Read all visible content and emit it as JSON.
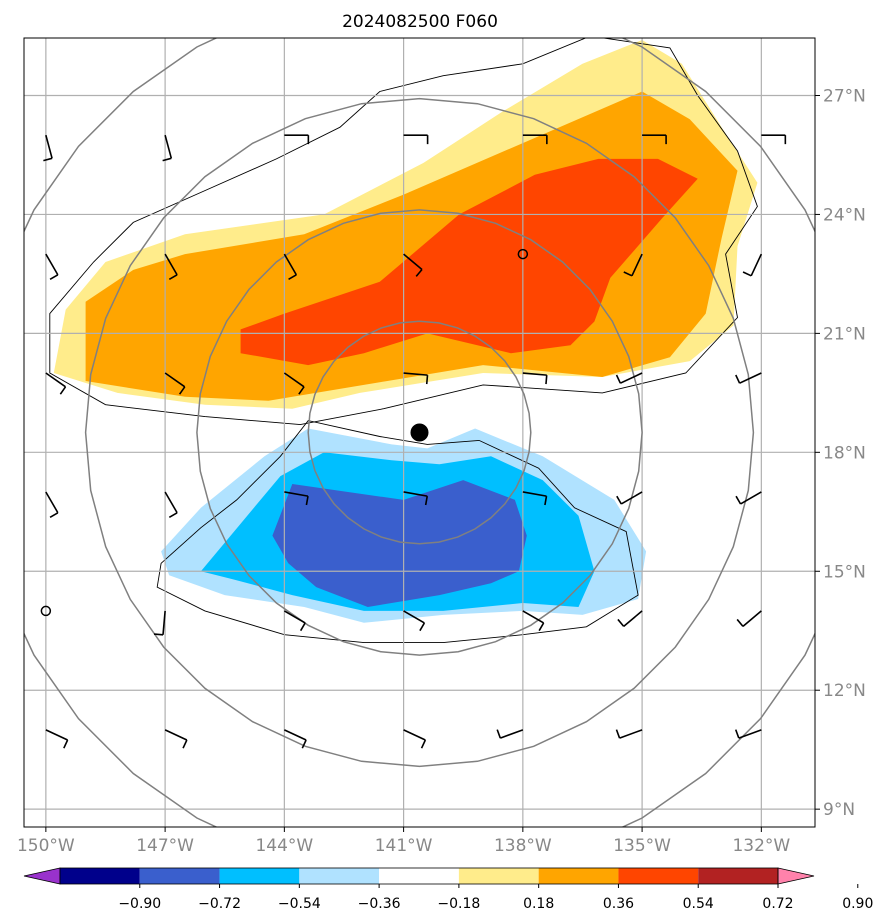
{
  "chart_data": {
    "type": "heatmap",
    "title": "2024082500 F060",
    "map": {
      "lon_range": [
        -150.55,
        -130.65
      ],
      "lat_range": [
        8.55,
        28.45
      ],
      "lon_ticks": [
        -150,
        -147,
        -144,
        -141,
        -138,
        -135,
        -132
      ],
      "lat_ticks": [
        9,
        12,
        15,
        18,
        21,
        24,
        27
      ],
      "lon_tick_labels": [
        "150°W",
        "147°W",
        "144°W",
        "141°W",
        "138°W",
        "135°W",
        "132°W"
      ],
      "lat_tick_labels": [
        "9°N",
        "12°N",
        "15°N",
        "18°N",
        "21°N",
        "24°N",
        "27°N"
      ],
      "grid": true,
      "center_marker": {
        "lon": -140.6,
        "lat": 18.5
      },
      "range_rings_deg": [
        2.8,
        5.6,
        8.4,
        11.2
      ],
      "ring_color": "#808080"
    },
    "colorbar": {
      "levels": [
        "−0.90",
        "−0.72",
        "−0.54",
        "−0.36",
        "−0.18",
        "0.18",
        "0.36",
        "0.54",
        "0.72",
        "0.90"
      ],
      "colors": [
        "#9932CC",
        "#00008B",
        "#3A5FCD",
        "#00BFFF",
        "#B0E2FF",
        "#FFFFFF",
        "#FFEC8B",
        "#FFA500",
        "#FF4500",
        "#B22222",
        "#FF82AB"
      ],
      "extend": "both"
    },
    "contours": [
      {
        "level": 0.18,
        "color": "#FFEC8B",
        "points": [
          [
            -149.5,
            21.6
          ],
          [
            -148.5,
            22.8
          ],
          [
            -146.5,
            23.5
          ],
          [
            -143,
            24
          ],
          [
            -140.5,
            25.3
          ],
          [
            -138.5,
            26.6
          ],
          [
            -136.5,
            27.8
          ],
          [
            -135,
            28.4
          ],
          [
            -134,
            27.8
          ],
          [
            -133,
            26.2
          ],
          [
            -132.1,
            24.8
          ],
          [
            -132.6,
            23.2
          ],
          [
            -132.7,
            21.2
          ],
          [
            -133.8,
            20.3
          ],
          [
            -136,
            19.9
          ],
          [
            -139,
            20
          ],
          [
            -142.1,
            19.5
          ],
          [
            -143.8,
            19.1
          ],
          [
            -146,
            19.2
          ],
          [
            -148.2,
            19.5
          ],
          [
            -149.8,
            20
          ]
        ]
      },
      {
        "level": 0.36,
        "color": "#FFA500",
        "points": [
          [
            -149,
            21.8
          ],
          [
            -147.8,
            22.6
          ],
          [
            -146.5,
            23
          ],
          [
            -143.5,
            23.5
          ],
          [
            -141,
            24.5
          ],
          [
            -138,
            25.8
          ],
          [
            -135,
            27.1
          ],
          [
            -133.8,
            26.4
          ],
          [
            -132.6,
            25.1
          ],
          [
            -133,
            23.4
          ],
          [
            -133.4,
            21.5
          ],
          [
            -134.3,
            20.4
          ],
          [
            -136,
            19.9
          ],
          [
            -139,
            20.2
          ],
          [
            -142,
            19.7
          ],
          [
            -144.4,
            19.3
          ],
          [
            -146.5,
            19.4
          ],
          [
            -149,
            19.8
          ]
        ]
      },
      {
        "level": 0.54,
        "color": "#FF4500",
        "points": [
          [
            -145.1,
            21.1
          ],
          [
            -144,
            21.5
          ],
          [
            -141.6,
            22.3
          ],
          [
            -139.6,
            24
          ],
          [
            -137.7,
            25
          ],
          [
            -136.1,
            25.4
          ],
          [
            -134.6,
            25.4
          ],
          [
            -133.6,
            24.9
          ],
          [
            -134.5,
            23.9
          ],
          [
            -135.8,
            22.4
          ],
          [
            -136.2,
            21.3
          ],
          [
            -136.8,
            20.7
          ],
          [
            -138.3,
            20.5
          ],
          [
            -140.4,
            21
          ],
          [
            -142,
            20.5
          ],
          [
            -143.4,
            20.2
          ],
          [
            -145.1,
            20.5
          ]
        ]
      },
      {
        "level": -0.18,
        "color": "#B0E2FF",
        "points": [
          [
            -147.1,
            15.5
          ],
          [
            -146.1,
            16.6
          ],
          [
            -144.5,
            17.9
          ],
          [
            -143.4,
            18.6
          ],
          [
            -141.3,
            18.2
          ],
          [
            -140.4,
            18.1
          ],
          [
            -139.2,
            18.6
          ],
          [
            -137.5,
            17.9
          ],
          [
            -135.7,
            16.8
          ],
          [
            -134.9,
            15.5
          ],
          [
            -135.1,
            14.3
          ],
          [
            -136.5,
            13.9
          ],
          [
            -138,
            14
          ],
          [
            -140,
            13.9
          ],
          [
            -142,
            13.7
          ],
          [
            -143.5,
            14.1
          ],
          [
            -145.5,
            14.4
          ],
          [
            -146.9,
            14.9
          ]
        ]
      },
      {
        "level": -0.36,
        "color": "#00BFFF",
        "points": [
          [
            -146.1,
            15
          ],
          [
            -145.1,
            16.2
          ],
          [
            -144.1,
            17.4
          ],
          [
            -143,
            18
          ],
          [
            -141.3,
            17.8
          ],
          [
            -140.1,
            17.7
          ],
          [
            -138.8,
            17.9
          ],
          [
            -137.5,
            17.3
          ],
          [
            -136.6,
            16.4
          ],
          [
            -136.2,
            15
          ],
          [
            -136.6,
            14.1
          ],
          [
            -138,
            14.2
          ],
          [
            -140,
            14
          ],
          [
            -142,
            14
          ],
          [
            -143.8,
            14.4
          ],
          [
            -145.3,
            14.8
          ]
        ]
      },
      {
        "level": -0.54,
        "color": "#3A5FCD",
        "points": [
          [
            -144.3,
            15.9
          ],
          [
            -143.8,
            17.2
          ],
          [
            -141,
            16.8
          ],
          [
            -139.5,
            17.3
          ],
          [
            -138.2,
            16.8
          ],
          [
            -137.9,
            15.9
          ],
          [
            -138.1,
            15
          ],
          [
            -138.8,
            14.7
          ],
          [
            -140.1,
            14.4
          ],
          [
            -141.9,
            14.1
          ],
          [
            -143.2,
            14.6
          ],
          [
            -143.9,
            15.2
          ]
        ]
      }
    ],
    "contour_outlines": [
      {
        "level": 0.18,
        "points": [
          [
            -149.9,
            21.5
          ],
          [
            -148.8,
            22.8
          ],
          [
            -147.8,
            23.8
          ],
          [
            -146,
            24.6
          ],
          [
            -144.2,
            25.4
          ],
          [
            -142.6,
            26.2
          ],
          [
            -141.6,
            27.1
          ],
          [
            -140,
            27.5
          ],
          [
            -138,
            27.8
          ],
          [
            -136.3,
            28.5
          ],
          [
            -134.3,
            28.2
          ],
          [
            -133.6,
            27
          ],
          [
            -132.6,
            25.6
          ],
          [
            -132.1,
            24.2
          ],
          [
            -132.9,
            23
          ],
          [
            -132.6,
            21.4
          ],
          [
            -133.9,
            20
          ],
          [
            -136,
            19.5
          ],
          [
            -139,
            19.7
          ],
          [
            -141.5,
            19.1
          ],
          [
            -143.6,
            18.7
          ],
          [
            -146,
            18.9
          ],
          [
            -148.5,
            19.2
          ],
          [
            -149.9,
            20
          ]
        ]
      },
      {
        "level": -0.18,
        "points": [
          [
            -147.1,
            15.2
          ],
          [
            -146.1,
            16.1
          ],
          [
            -145.2,
            16.8
          ],
          [
            -144.1,
            17.9
          ],
          [
            -143.4,
            18.8
          ],
          [
            -141.6,
            18.4
          ],
          [
            -140.4,
            18.2
          ],
          [
            -139.1,
            18.3
          ],
          [
            -137.6,
            17.6
          ],
          [
            -136.7,
            16.6
          ],
          [
            -135.4,
            16
          ],
          [
            -135.1,
            14.4
          ],
          [
            -136.4,
            13.6
          ],
          [
            -138,
            13.4
          ],
          [
            -140,
            13.2
          ],
          [
            -142,
            13.2
          ],
          [
            -144,
            13.4
          ],
          [
            -146,
            14
          ],
          [
            -147.2,
            14.6
          ]
        ]
      }
    ],
    "wind_barbs": [
      {
        "lon": -150,
        "lat": 26
      },
      {
        "lon": -147,
        "lat": 26
      },
      {
        "lon": -144,
        "lat": 26
      },
      {
        "lon": -141,
        "lat": 26
      },
      {
        "lon": -138,
        "lat": 26
      },
      {
        "lon": -135,
        "lat": 26
      },
      {
        "lon": -132,
        "lat": 26
      },
      {
        "lon": -150,
        "lat": 23
      },
      {
        "lon": -147,
        "lat": 23
      },
      {
        "lon": -144,
        "lat": 23
      },
      {
        "lon": -141,
        "lat": 23
      },
      {
        "lon": -138,
        "lat": 23,
        "calm": true
      },
      {
        "lon": -135,
        "lat": 23
      },
      {
        "lon": -132,
        "lat": 23
      },
      {
        "lon": -150,
        "lat": 20
      },
      {
        "lon": -147,
        "lat": 20
      },
      {
        "lon": -144,
        "lat": 20
      },
      {
        "lon": -141,
        "lat": 20
      },
      {
        "lon": -138,
        "lat": 20
      },
      {
        "lon": -135,
        "lat": 20
      },
      {
        "lon": -132,
        "lat": 20
      },
      {
        "lon": -150,
        "lat": 17
      },
      {
        "lon": -147,
        "lat": 17
      },
      {
        "lon": -144,
        "lat": 17
      },
      {
        "lon": -141,
        "lat": 17
      },
      {
        "lon": -138,
        "lat": 17
      },
      {
        "lon": -135,
        "lat": 17
      },
      {
        "lon": -132,
        "lat": 17
      },
      {
        "lon": -150,
        "lat": 14,
        "calm": true
      },
      {
        "lon": -147,
        "lat": 14
      },
      {
        "lon": -144,
        "lat": 14
      },
      {
        "lon": -141,
        "lat": 14
      },
      {
        "lon": -138,
        "lat": 14
      },
      {
        "lon": -135,
        "lat": 14
      },
      {
        "lon": -132,
        "lat": 14
      },
      {
        "lon": -150,
        "lat": 11
      },
      {
        "lon": -147,
        "lat": 11
      },
      {
        "lon": -144,
        "lat": 11
      },
      {
        "lon": -141,
        "lat": 11
      },
      {
        "lon": -138,
        "lat": 11
      },
      {
        "lon": -135,
        "lat": 11
      },
      {
        "lon": -132,
        "lat": 11
      }
    ]
  }
}
